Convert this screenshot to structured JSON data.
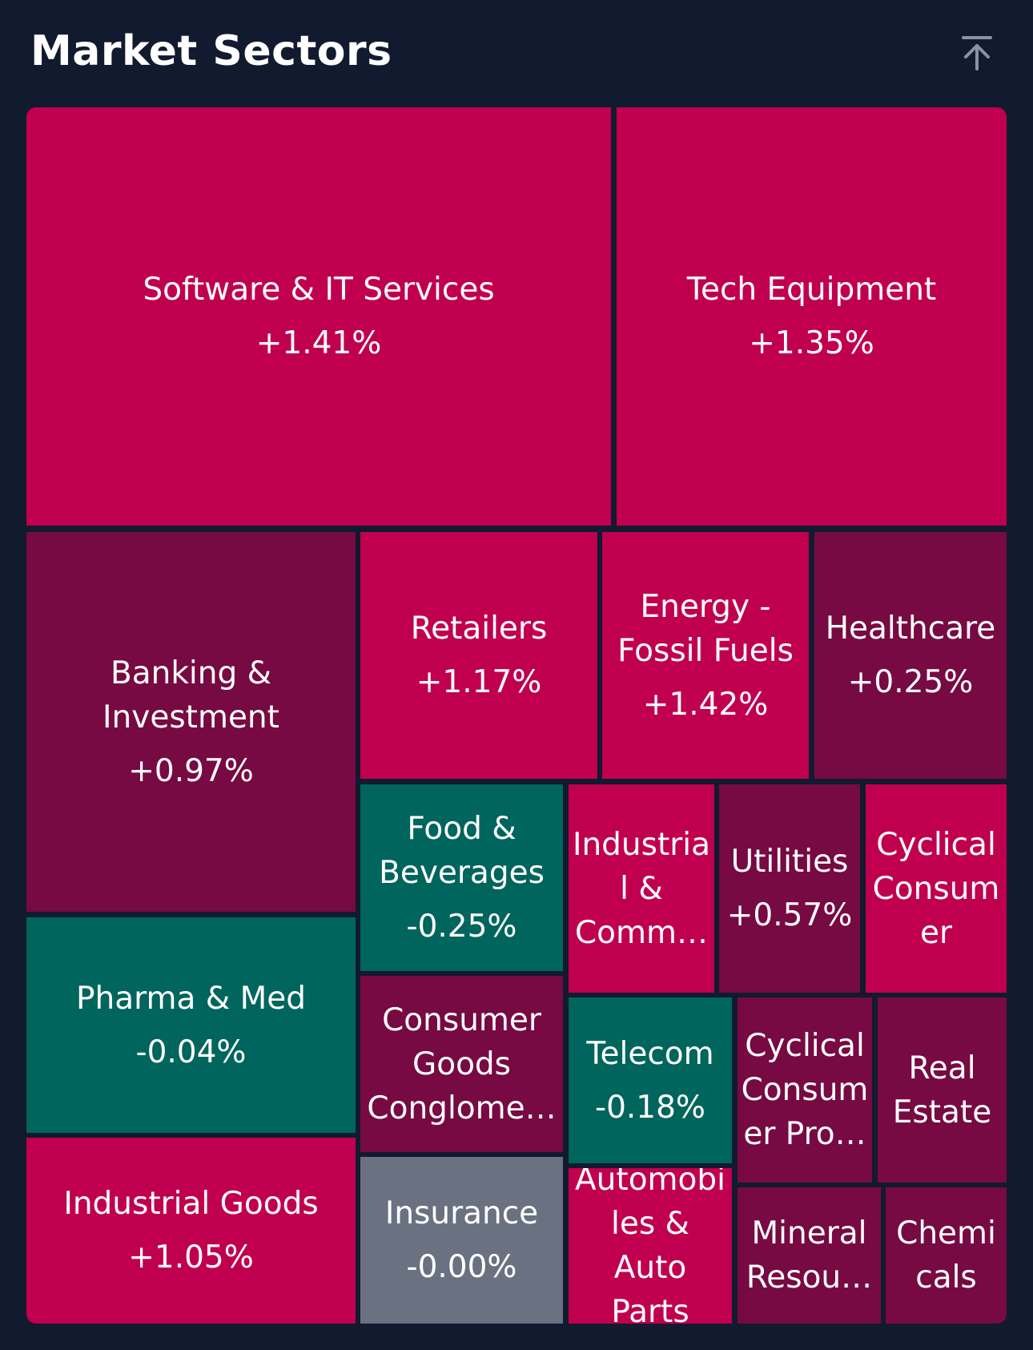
{
  "header": {
    "title": "Market Sectors",
    "collapse_icon": "arrow-up-to-line-icon"
  },
  "colors": {
    "background": "#111a2e",
    "strong_gain": "#c0004f",
    "weak_gain": "#770a42",
    "loss": "#00655c",
    "flat": "#6a7180"
  },
  "sectors": [
    {
      "name": "Software & IT Services",
      "change": "+1.41%"
    },
    {
      "name": "Tech Equipment",
      "change": "+1.35%"
    },
    {
      "name": "Banking &\nInvestment",
      "change": "+0.97%"
    },
    {
      "name": "Retailers",
      "change": "+1.17%"
    },
    {
      "name": "Energy -\nFossil Fuels",
      "change": "+1.42%"
    },
    {
      "name": "Healthcare",
      "change": "+0.25%"
    },
    {
      "name": "Food &\nBeverages",
      "change": "-0.25%"
    },
    {
      "name": "Industria\nl &\nComm…",
      "change": ""
    },
    {
      "name": "Utilities",
      "change": "+0.57%"
    },
    {
      "name": "Cyclical\nConsum\ner",
      "change": ""
    },
    {
      "name": "Pharma & Med",
      "change": "-0.04%"
    },
    {
      "name": "Consumer\nGoods\nConglome…",
      "change": ""
    },
    {
      "name": "Telecom",
      "change": "-0.18%"
    },
    {
      "name": "Cyclical\nConsum\ner Pro…",
      "change": ""
    },
    {
      "name": "Real\nEstate",
      "change": ""
    },
    {
      "name": "Industrial Goods",
      "change": "+1.05%"
    },
    {
      "name": "Insurance",
      "change": "-0.00%"
    },
    {
      "name": "Automobi\nles & Auto\nParts",
      "change": ""
    },
    {
      "name": "Mineral\nResou…",
      "change": ""
    },
    {
      "name": "Chemi\ncals",
      "change": ""
    }
  ]
}
